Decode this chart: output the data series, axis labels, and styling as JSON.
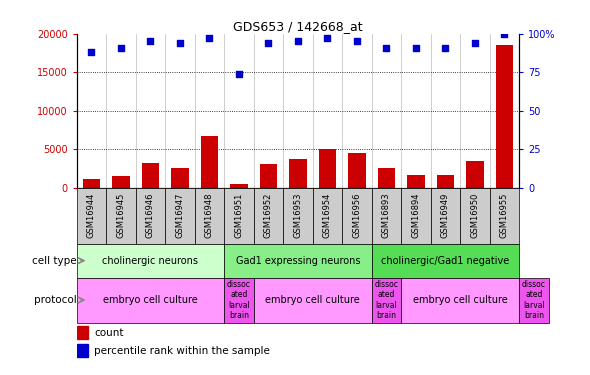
{
  "title": "GDS653 / 142668_at",
  "samples": [
    "GSM16944",
    "GSM16945",
    "GSM16946",
    "GSM16947",
    "GSM16948",
    "GSM16951",
    "GSM16952",
    "GSM16953",
    "GSM16954",
    "GSM16956",
    "GSM16893",
    "GSM16894",
    "GSM16949",
    "GSM16950",
    "GSM16955"
  ],
  "counts": [
    1100,
    1450,
    3200,
    2500,
    6700,
    400,
    3000,
    3700,
    5000,
    4500,
    2500,
    1600,
    1600,
    3400,
    18500
  ],
  "percentiles": [
    88,
    91,
    95,
    94,
    97,
    74,
    94,
    95,
    97,
    95,
    91,
    91,
    91,
    94,
    100
  ],
  "ylim_left": [
    0,
    20000
  ],
  "ylim_right": [
    0,
    100
  ],
  "yticks_left": [
    0,
    5000,
    10000,
    15000,
    20000
  ],
  "yticks_right": [
    0,
    25,
    50,
    75,
    100
  ],
  "bar_color": "#cc0000",
  "scatter_color": "#0000cc",
  "cell_type_groups": [
    {
      "label": "cholinergic neurons",
      "start": 0,
      "end": 5,
      "color": "#ccffcc"
    },
    {
      "label": "Gad1 expressing neurons",
      "start": 5,
      "end": 10,
      "color": "#88ee88"
    },
    {
      "label": "cholinergic/Gad1 negative",
      "start": 10,
      "end": 15,
      "color": "#55dd55"
    }
  ],
  "prot_color_main": "#ff99ff",
  "prot_color_alt": "#ee55ee",
  "prot_groups": [
    {
      "label": "embryo cell culture",
      "start": 0,
      "end": 5,
      "alt": false
    },
    {
      "label": "dissoc\nated\nlarval\nbrain",
      "start": 5,
      "end": 6,
      "alt": true
    },
    {
      "label": "embryo cell culture",
      "start": 6,
      "end": 10,
      "alt": false
    },
    {
      "label": "dissoc\nated\nlarval\nbrain",
      "start": 10,
      "end": 11,
      "alt": true
    },
    {
      "label": "embryo cell culture",
      "start": 11,
      "end": 15,
      "alt": false
    },
    {
      "label": "dissoc\nated\nlarval\nbrain",
      "start": 15,
      "end": 16,
      "alt": true
    }
  ],
  "cell_type_row_label": "cell type",
  "protocol_row_label": "protocol",
  "legend_count_label": "count",
  "legend_pct_label": "percentile rank within the sample",
  "tick_label_color_left": "#cc0000",
  "tick_label_color_right": "#0000cc",
  "sample_bg_color": "#cccccc",
  "label_arrow_color": "#888888"
}
